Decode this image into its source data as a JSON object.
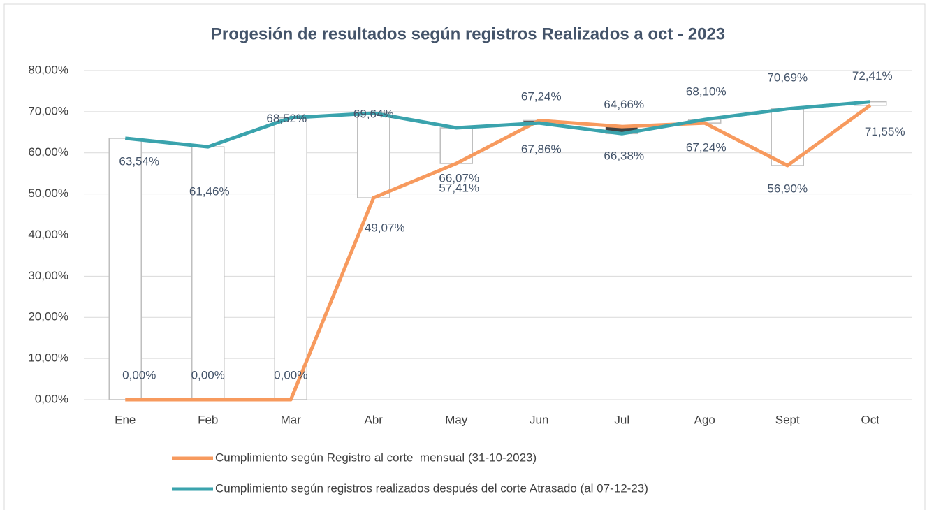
{
  "chart_data": {
    "type": "line",
    "title": "Progesión de resultados según registros Realizados a oct - 2023",
    "categories": [
      "Ene",
      "Feb",
      "Mar",
      "Abr",
      "May",
      "Jun",
      "Jul",
      "Ago",
      "Sept",
      "Oct"
    ],
    "series": [
      {
        "name": "Cumplimiento según Registro al corte  mensual (31-10-2023)",
        "color": "#f79a5e",
        "values": [
          0,
          0,
          0,
          49.07,
          57.41,
          67.86,
          66.38,
          67.24,
          56.9,
          71.55
        ],
        "value_labels": [
          "0,00%",
          "0,00%",
          "0,00%",
          "49,07%",
          "57,41%",
          "67,86%",
          "66,38%",
          "67,24%",
          "56,90%",
          "71,55%"
        ]
      },
      {
        "name": "Cumplimiento según registros realizados después del corte Atrasado (al 07-12-23)",
        "color": "#3aa3ad",
        "values": [
          63.54,
          61.46,
          68.52,
          69.64,
          66.07,
          67.24,
          64.66,
          68.1,
          70.69,
          72.41
        ],
        "value_labels": [
          "63,54%",
          "61,46%",
          "68,52%",
          "69,64%",
          "66,07%",
          "67,24%",
          "64,66%",
          "68,10%",
          "70,69%",
          "72,41%"
        ]
      }
    ],
    "up_down_bars": {
      "up_color": "#ffffff",
      "down_color": "#404040"
    },
    "ylim": [
      0,
      80
    ],
    "yticks": [
      {
        "value": 0,
        "label": "0,00%"
      },
      {
        "value": 10,
        "label": "10,00%"
      },
      {
        "value": 20,
        "label": "20,00%"
      },
      {
        "value": 30,
        "label": "30,00%"
      },
      {
        "value": 40,
        "label": "40,00%"
      },
      {
        "value": 50,
        "label": "50,00%"
      },
      {
        "value": 60,
        "label": "60,00%"
      },
      {
        "value": 70,
        "label": "70,00%"
      },
      {
        "value": 80,
        "label": "80,00%"
      }
    ],
    "grid": true,
    "legend": "bottom"
  }
}
